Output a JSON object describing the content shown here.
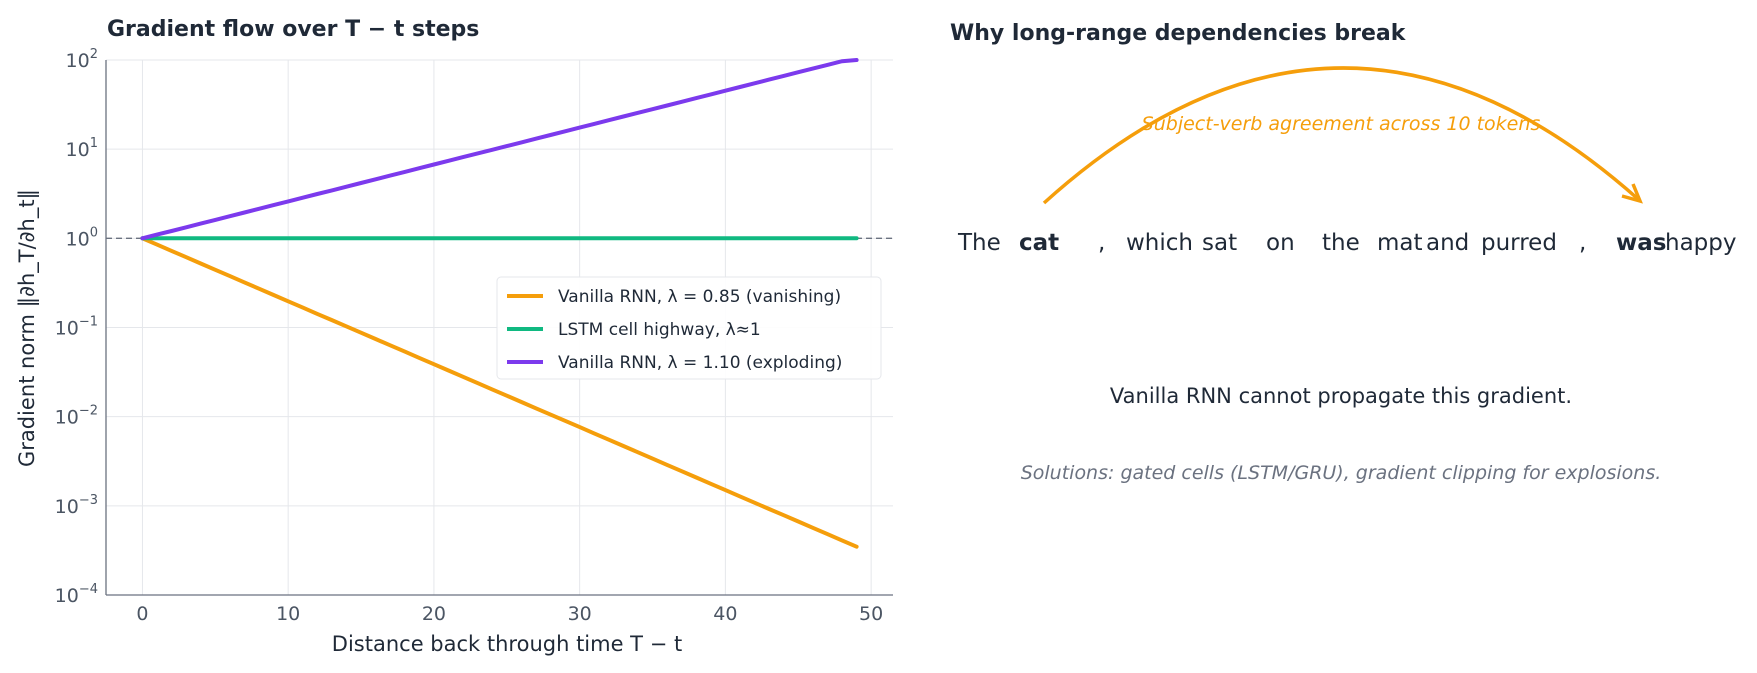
{
  "chart_data": [
    {
      "type": "line",
      "title": "Gradient flow over T − t steps",
      "xlabel": "Distance back through time  T − t",
      "ylabel": "Gradient norm  ‖∂h_T/∂h_t‖",
      "xlim": [
        -2.5,
        51.5
      ],
      "ylim": [
        0.0001,
        100
      ],
      "yscale": "log",
      "grid": true,
      "legend_position": "center-right",
      "x_ticks": [
        "0",
        "10",
        "20",
        "30",
        "40",
        "50"
      ],
      "y_ticks": [
        {
          "base": "10",
          "exp": "2"
        },
        {
          "base": "10",
          "exp": "1"
        },
        {
          "base": "10",
          "exp": "0"
        },
        {
          "base": "10",
          "exp": "−1"
        },
        {
          "base": "10",
          "exp": "−2"
        },
        {
          "base": "10",
          "exp": "−3"
        },
        {
          "base": "10",
          "exp": "−4"
        }
      ],
      "reference_line": {
        "y": 1,
        "style": "dashed",
        "color": "#6b7280"
      },
      "x_range": [
        0,
        49
      ],
      "series": [
        {
          "name": "Vanilla RNN, λ = 0.85  (vanishing)",
          "formula": "0.85^x",
          "base": 0.85,
          "color": "#f59e0b"
        },
        {
          "name": "LSTM cell highway, λ≈1",
          "formula": "1",
          "base": 1.0,
          "color": "#10b981"
        },
        {
          "name": "Vanilla RNN, λ = 1.10  (exploding)",
          "formula": "1.10^x",
          "base": 1.1,
          "color": "#7c3aed"
        }
      ]
    }
  ],
  "right_panel": {
    "title": "Why long-range dependencies break",
    "arc_label": "Subject-verb agreement across 10 tokens",
    "tokens": [
      {
        "text": "The",
        "highlight": false
      },
      {
        "text": "cat",
        "highlight": true
      },
      {
        "text": ",",
        "highlight": false
      },
      {
        "text": "which",
        "highlight": false
      },
      {
        "text": "sat",
        "highlight": false
      },
      {
        "text": "on",
        "highlight": false
      },
      {
        "text": "the",
        "highlight": false
      },
      {
        "text": "mat",
        "highlight": false
      },
      {
        "text": "and",
        "highlight": false
      },
      {
        "text": "purred",
        "highlight": false
      },
      {
        "text": ",",
        "highlight": false
      },
      {
        "text": "was",
        "highlight": true
      },
      {
        "text": "happy",
        "highlight": false
      }
    ],
    "statement": "Vanilla RNN cannot propagate this gradient.",
    "solutions": "Solutions: gated cells (LSTM/GRU), gradient clipping for explosions.",
    "highlight_color": "#f59e0b"
  }
}
